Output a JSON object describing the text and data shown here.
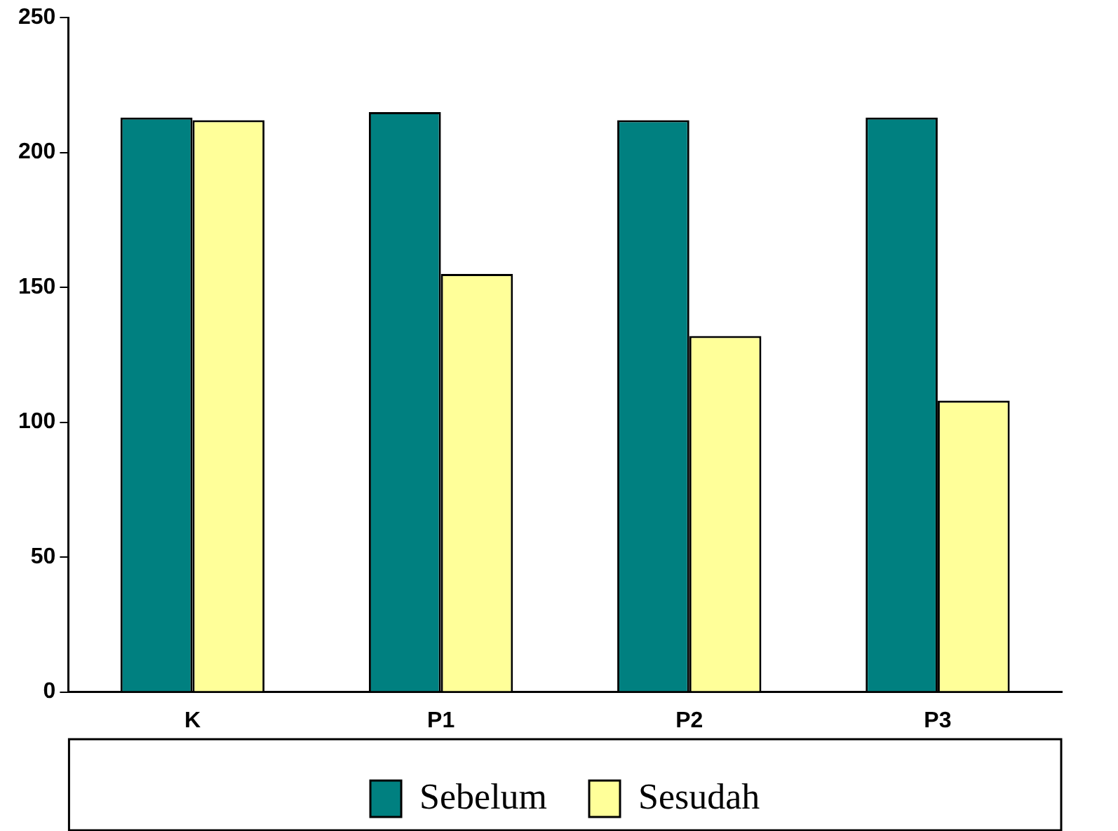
{
  "chart_data": {
    "type": "bar",
    "categories": [
      "K",
      "P1",
      "P2",
      "P3"
    ],
    "series": [
      {
        "name": "Sebelum",
        "color": "#008080",
        "values": [
          213,
          215,
          212,
          213
        ]
      },
      {
        "name": "Sesudah",
        "color": "#ffff99",
        "values": [
          212,
          155,
          132,
          108
        ]
      }
    ],
    "ylim": [
      0,
      250
    ],
    "yticks": [
      0,
      50,
      100,
      150,
      200,
      250
    ],
    "grid": false,
    "legend": "bottom"
  }
}
